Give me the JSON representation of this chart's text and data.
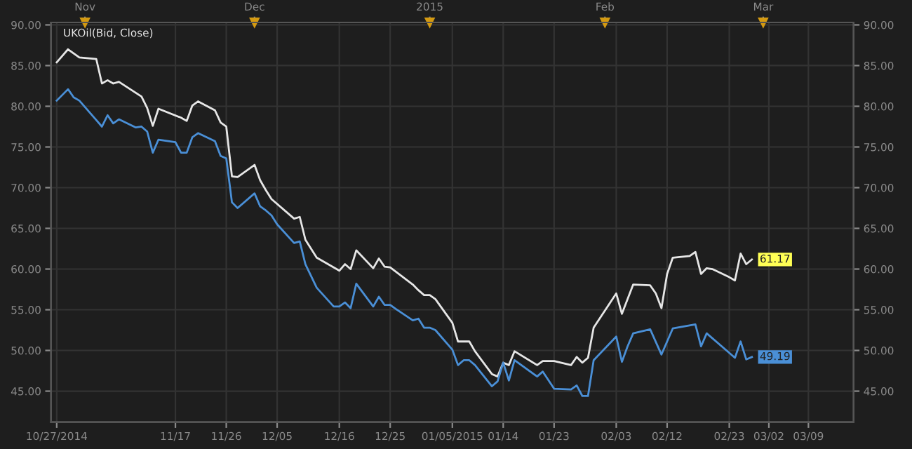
{
  "chart_data": {
    "type": "line",
    "title": "UKOil(Bid, Close)",
    "xlim": [
      "2014-10-26",
      "2015-03-17"
    ],
    "xticks": [
      {
        "value": "2014-10-27",
        "label": "10/27/2014"
      },
      {
        "value": "2014-11-17",
        "label": "11/17"
      },
      {
        "value": "2014-11-26",
        "label": "11/26"
      },
      {
        "value": "2014-12-05",
        "label": "12/05"
      },
      {
        "value": "2014-12-16",
        "label": "12/16"
      },
      {
        "value": "2014-12-25",
        "label": "12/25"
      },
      {
        "value": "2015-01-05",
        "label": "01/05/2015"
      },
      {
        "value": "2015-01-14",
        "label": "01/14"
      },
      {
        "value": "2015-01-23",
        "label": "01/23"
      },
      {
        "value": "2015-02-03",
        "label": "02/03"
      },
      {
        "value": "2015-02-12",
        "label": "02/12"
      },
      {
        "value": "2015-02-23",
        "label": "02/23"
      },
      {
        "value": "2015-03-02",
        "label": "03/02"
      },
      {
        "value": "2015-03-09",
        "label": "03/09"
      }
    ],
    "x2lim": [
      "2014-10-26",
      "2015-03-17"
    ],
    "x2ticks": [
      {
        "value": "2014-11-01",
        "label": "Nov"
      },
      {
        "value": "2014-12-01",
        "label": "Dec"
      },
      {
        "value": "2015-01-01",
        "label": "2015"
      },
      {
        "value": "2015-02-01",
        "label": "Feb"
      },
      {
        "value": "2015-03-01",
        "label": "Mar"
      }
    ],
    "ylim": [
      41.2,
      90.3
    ],
    "yticks": [
      {
        "value": 45,
        "label": "45.00"
      },
      {
        "value": 50,
        "label": "50.00"
      },
      {
        "value": 55,
        "label": "55.00"
      },
      {
        "value": 60,
        "label": "60.00"
      },
      {
        "value": 65,
        "label": "65.00"
      },
      {
        "value": 70,
        "label": "70.00"
      },
      {
        "value": 75,
        "label": "75.00"
      },
      {
        "value": 80,
        "label": "80.00"
      },
      {
        "value": 85,
        "label": "85.00"
      },
      {
        "value": 90,
        "label": "90.00"
      }
    ],
    "y2lim": [
      41.2,
      90.3
    ],
    "y2ticks": [
      {
        "value": 45,
        "label": "45.00"
      },
      {
        "value": 50,
        "label": "50.00"
      },
      {
        "value": 55,
        "label": "55.00"
      },
      {
        "value": 60,
        "label": "60.00"
      },
      {
        "value": 65,
        "label": "65.00"
      },
      {
        "value": 70,
        "label": "70.00"
      },
      {
        "value": 75,
        "label": "75.00"
      },
      {
        "value": 80,
        "label": "80.00"
      },
      {
        "value": 85,
        "label": "85.00"
      },
      {
        "value": 90,
        "label": "90.00"
      }
    ],
    "grid": true,
    "legend": false,
    "marker": "none",
    "line_style": "solid",
    "series": [
      {
        "color": "#e6e6e6",
        "x": [
          "2014-10-27",
          "2014-10-29",
          "2014-10-31",
          "2014-11-03",
          "2014-11-04",
          "2014-11-05",
          "2014-11-06",
          "2014-11-07",
          "2014-11-11",
          "2014-11-12",
          "2014-11-13",
          "2014-11-14",
          "2014-11-18",
          "2014-11-19",
          "2014-11-20",
          "2014-11-21",
          "2014-11-24",
          "2014-11-25",
          "2014-11-26",
          "2014-11-27",
          "2014-11-28",
          "2014-12-01",
          "2014-12-02",
          "2014-12-03",
          "2014-12-04",
          "2014-12-08",
          "2014-12-09",
          "2014-12-10",
          "2014-12-12",
          "2014-12-16",
          "2014-12-17",
          "2014-12-18",
          "2014-12-19",
          "2014-12-22",
          "2014-12-23",
          "2014-12-24",
          "2014-12-25",
          "2014-12-29",
          "2014-12-30",
          "2014-12-31",
          "2015-01-01",
          "2015-01-02",
          "2015-01-05",
          "2015-01-06",
          "2015-01-08",
          "2015-01-09",
          "2015-01-12",
          "2015-01-13",
          "2015-01-14",
          "2015-01-15",
          "2015-01-16",
          "2015-01-20",
          "2015-01-21",
          "2015-01-23",
          "2015-01-26",
          "2015-01-27",
          "2015-01-28",
          "2015-01-29",
          "2015-01-30",
          "2015-02-03",
          "2015-02-04",
          "2015-02-06",
          "2015-02-09",
          "2015-02-10",
          "2015-02-11",
          "2015-02-12",
          "2015-02-13",
          "2015-02-16",
          "2015-02-17",
          "2015-02-18",
          "2015-02-19",
          "2015-02-20",
          "2015-02-23",
          "2015-02-24",
          "2015-02-25",
          "2015-02-26",
          "2015-02-27"
        ],
        "values": [
          85.4,
          87.0,
          86.0,
          85.8,
          82.8,
          83.2,
          82.8,
          83.0,
          81.2,
          79.8,
          77.6,
          79.7,
          78.6,
          78.2,
          80.1,
          80.6,
          79.5,
          78.0,
          77.5,
          71.4,
          71.3,
          72.8,
          70.9,
          69.7,
          68.6,
          66.2,
          66.4,
          63.6,
          61.4,
          59.8,
          60.6,
          60.0,
          62.3,
          60.1,
          61.3,
          60.3,
          60.2,
          58.1,
          57.4,
          56.8,
          56.8,
          56.3,
          53.4,
          51.1,
          51.1,
          49.9,
          47.1,
          46.8,
          48.5,
          48.2,
          49.9,
          48.2,
          48.7,
          48.7,
          48.2,
          49.2,
          48.5,
          49.1,
          52.8,
          57.0,
          54.5,
          58.1,
          58.0,
          57.0,
          55.2,
          59.4,
          61.4,
          61.6,
          62.1,
          59.4,
          60.1,
          60.0,
          59.0,
          58.6,
          61.9,
          60.6,
          61.17
        ],
        "value_labels": [
          null,
          null,
          null,
          null,
          null,
          null,
          null,
          null,
          null,
          null,
          null,
          null,
          null,
          null,
          null,
          null,
          null,
          null,
          null,
          null,
          null,
          null,
          null,
          null,
          null,
          null,
          null,
          null,
          null,
          null,
          null,
          null,
          null,
          null,
          null,
          null,
          null,
          null,
          null,
          null,
          null,
          null,
          null,
          null,
          null,
          null,
          null,
          null,
          null,
          null,
          null,
          null,
          null,
          null,
          null,
          null,
          null,
          null,
          null,
          null,
          null,
          null,
          null,
          null,
          null,
          null,
          null,
          null,
          null,
          null,
          null,
          null,
          null,
          null,
          null,
          null,
          "61.17"
        ]
      },
      {
        "color": "#4a8fd6",
        "x": [
          "2014-10-27",
          "2014-10-29",
          "2014-10-30",
          "2014-10-31",
          "2014-11-03",
          "2014-11-04",
          "2014-11-05",
          "2014-11-06",
          "2014-11-07",
          "2014-11-10",
          "2014-11-11",
          "2014-11-12",
          "2014-11-13",
          "2014-11-14",
          "2014-11-17",
          "2014-11-18",
          "2014-11-19",
          "2014-11-20",
          "2014-11-21",
          "2014-11-24",
          "2014-11-25",
          "2014-11-26",
          "2014-11-27",
          "2014-11-28",
          "2014-12-01",
          "2014-12-02",
          "2014-12-03",
          "2014-12-04",
          "2014-12-05",
          "2014-12-08",
          "2014-12-09",
          "2014-12-10",
          "2014-12-12",
          "2014-12-15",
          "2014-12-16",
          "2014-12-17",
          "2014-12-18",
          "2014-12-19",
          "2014-12-22",
          "2014-12-23",
          "2014-12-24",
          "2014-12-25",
          "2014-12-26",
          "2014-12-29",
          "2014-12-30",
          "2014-12-31",
          "2015-01-01",
          "2015-01-02",
          "2015-01-05",
          "2015-01-06",
          "2015-01-07",
          "2015-01-08",
          "2015-01-09",
          "2015-01-12",
          "2015-01-13",
          "2015-01-14",
          "2015-01-15",
          "2015-01-16",
          "2015-01-20",
          "2015-01-21",
          "2015-01-23",
          "2015-01-26",
          "2015-01-27",
          "2015-01-28",
          "2015-01-29",
          "2015-01-30",
          "2015-02-03",
          "2015-02-04",
          "2015-02-05",
          "2015-02-06",
          "2015-02-09",
          "2015-02-11",
          "2015-02-13",
          "2015-02-17",
          "2015-02-18",
          "2015-02-19",
          "2015-02-23",
          "2015-02-24",
          "2015-02-25",
          "2015-02-26",
          "2015-02-27"
        ],
        "values": [
          80.7,
          82.1,
          81.1,
          80.7,
          78.3,
          77.5,
          78.9,
          77.9,
          78.4,
          77.4,
          77.5,
          76.9,
          74.3,
          75.9,
          75.6,
          74.3,
          74.3,
          76.2,
          76.7,
          75.7,
          73.9,
          73.6,
          68.2,
          67.5,
          69.3,
          67.7,
          67.2,
          66.6,
          65.5,
          63.2,
          63.4,
          60.6,
          57.7,
          55.4,
          55.4,
          55.9,
          55.2,
          58.2,
          55.4,
          56.6,
          55.6,
          55.6,
          55.1,
          53.7,
          53.9,
          52.8,
          52.8,
          52.5,
          50.1,
          48.2,
          48.8,
          48.8,
          48.2,
          45.6,
          46.2,
          48.5,
          46.3,
          48.8,
          46.8,
          47.4,
          45.3,
          45.2,
          45.7,
          44.4,
          44.4,
          48.8,
          51.7,
          48.6,
          50.5,
          52.1,
          52.6,
          49.5,
          52.7,
          53.2,
          50.5,
          52.1,
          49.7,
          49.1,
          51.1,
          48.9,
          49.19
        ],
        "value_labels": [
          null,
          null,
          null,
          null,
          null,
          null,
          null,
          null,
          null,
          null,
          null,
          null,
          null,
          null,
          null,
          null,
          null,
          null,
          null,
          null,
          null,
          null,
          null,
          null,
          null,
          null,
          null,
          null,
          null,
          null,
          null,
          null,
          null,
          null,
          null,
          null,
          null,
          null,
          null,
          null,
          null,
          null,
          null,
          null,
          null,
          null,
          null,
          null,
          null,
          null,
          null,
          null,
          null,
          null,
          null,
          null,
          null,
          null,
          null,
          null,
          null,
          null,
          null,
          null,
          null,
          null,
          null,
          null,
          null,
          null,
          null,
          null,
          null,
          null,
          null,
          null,
          null,
          null,
          null,
          null,
          "49.19"
        ]
      }
    ]
  }
}
